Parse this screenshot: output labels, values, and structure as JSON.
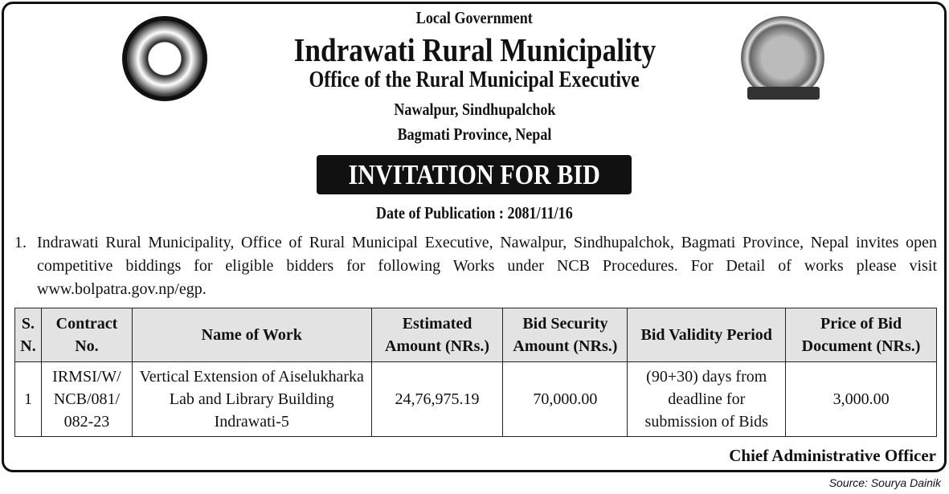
{
  "header": {
    "pretitle": "Local Government",
    "title": "Indrawati Rural Municipality",
    "subtitle": "Office of the Rural Municipal Executive",
    "address_line1": "Nawalpur, Sindhupalchok",
    "address_line2": "Bagmati Province, Nepal",
    "left_emblem": "nepal-government-emblem",
    "right_emblem": "municipality-emblem"
  },
  "banner": "INVITATION FOR BID",
  "publication": "Date of Publication : 2081/11/16",
  "paragraph": {
    "number": "1.",
    "text": "Indrawati Rural Municipality, Office of Rural Municipal Executive, Nawalpur, Sindhupalchok, Bagmati Province, Nepal invites open competitive biddings for eligible bidders for following Works under NCB Procedures. For Detail of works please visit www.bolpatra.gov.np/egp."
  },
  "table": {
    "headers": [
      "S. N.",
      "Contract No.",
      "Name of Work",
      "Estimated Amount (NRs.)",
      "Bid Security Amount (NRs.)",
      "Bid Validity Period",
      "Price of Bid Document (NRs.)"
    ],
    "rows": [
      [
        "1",
        "IRMSI/W/ NCB/081/ 082-23",
        "Vertical Extension of Aiselukharka Lab and Library Building Indrawati-5",
        "24,76,975.19",
        "70,000.00",
        "(90+30) days from deadline for submission of Bids",
        "3,000.00"
      ]
    ]
  },
  "signature": "Chief Administrative Officer",
  "source": "Source: Sourya Dainik"
}
